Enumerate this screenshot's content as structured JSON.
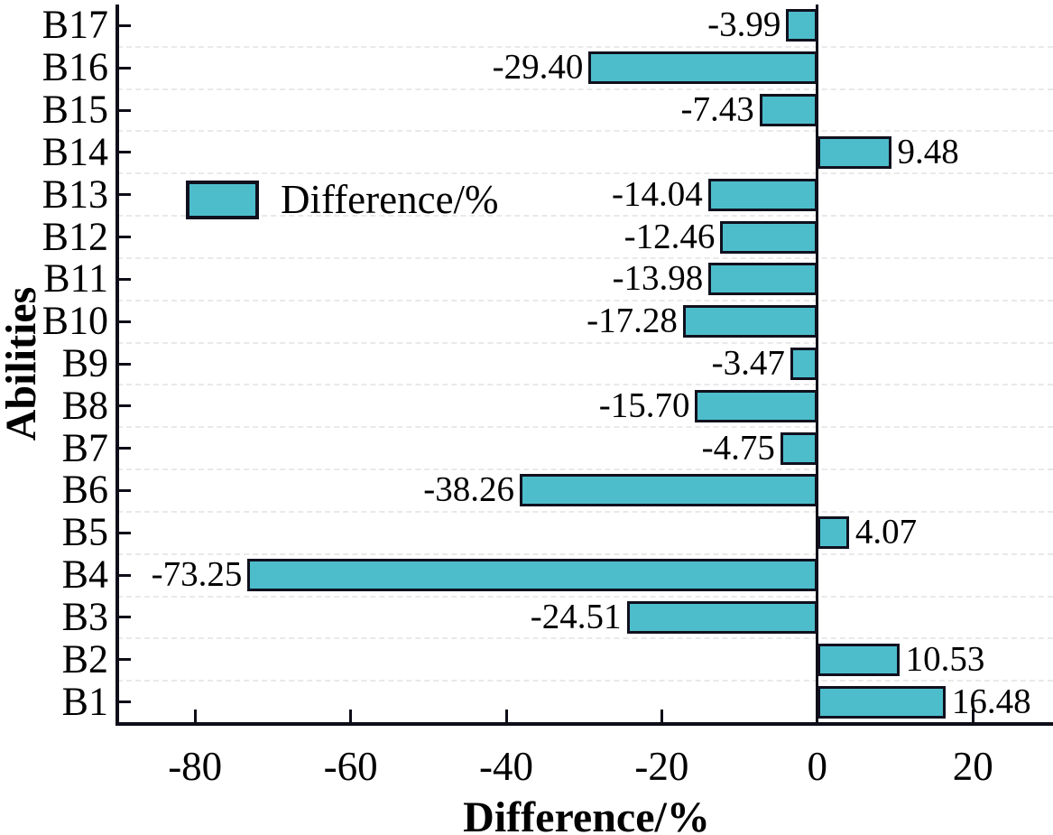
{
  "chart_data": {
    "type": "bar",
    "orientation": "horizontal",
    "title": "",
    "xlabel": "Difference/%",
    "ylabel": "Abilities",
    "legend_label": "Difference/%",
    "legend_position": "upper-left-inside",
    "categories_bottom_to_top": [
      "B1",
      "B2",
      "B3",
      "B4",
      "B5",
      "B6",
      "B7",
      "B8",
      "B9",
      "B10",
      "B11",
      "B12",
      "B13",
      "B14",
      "B15",
      "B16",
      "B17"
    ],
    "values": [
      16.48,
      10.53,
      -24.51,
      -73.25,
      4.07,
      -38.26,
      -4.75,
      -15.7,
      -3.47,
      -17.28,
      -13.98,
      -12.46,
      -14.04,
      9.48,
      -7.43,
      -29.4,
      -3.99
    ],
    "value_labels": [
      "16.48",
      "10.53",
      "-24.51",
      "-73.25",
      "4.07",
      "-38.26",
      "-4.75",
      "-15.70",
      "-3.47",
      "-17.28",
      "-13.98",
      "-12.46",
      "-14.04",
      "9.48",
      "-7.43",
      "-29.40",
      "-3.99"
    ],
    "xlim": [
      -90,
      30.3
    ],
    "xticks": [
      -80,
      -60,
      -40,
      -20,
      0,
      20
    ],
    "xtick_labels": [
      "-80",
      "-60",
      "-40",
      "-20",
      "0",
      "20"
    ],
    "grid": "horizontal dashed lines at category boundaries",
    "bar_color": "#4dbdcb",
    "bar_edge_color": "#10101e",
    "axis_color": "#0e0e18",
    "grid_color": "#e2e2e2",
    "background_color": "#ffffff"
  }
}
